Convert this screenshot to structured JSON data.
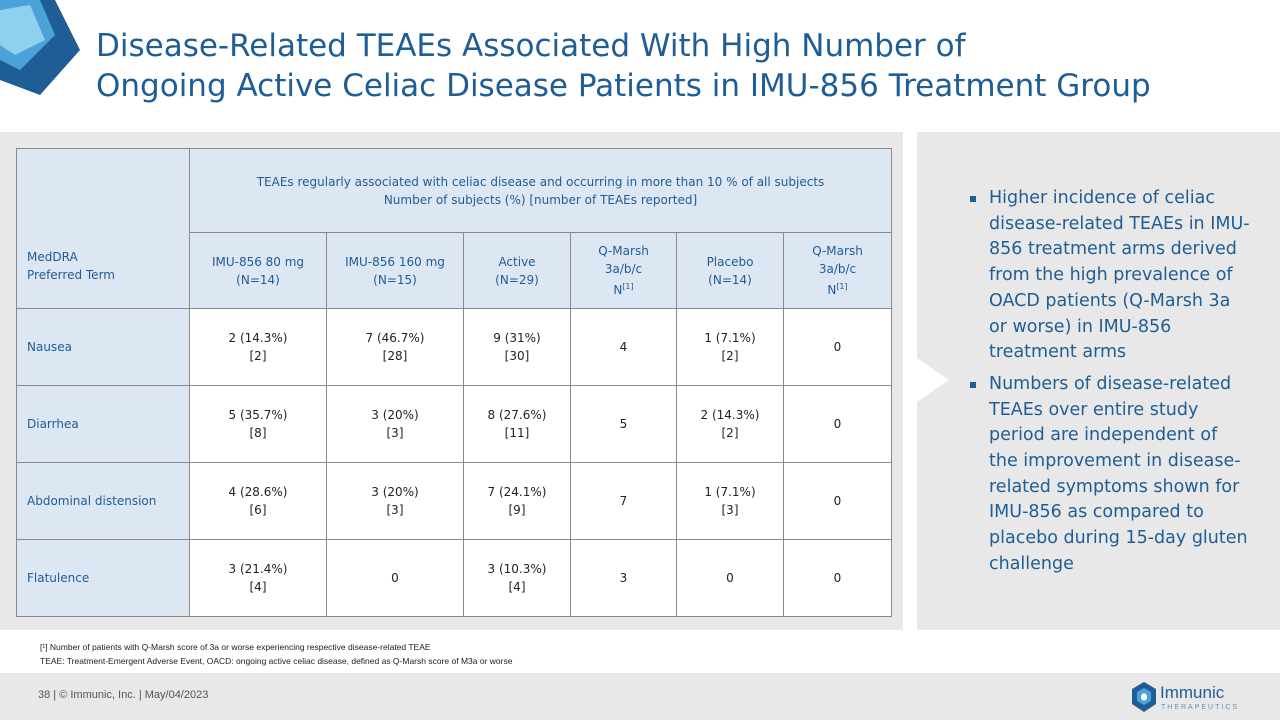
{
  "title": {
    "line1": "Disease-Related TEAEs Associated With High Number of",
    "line2": "Ongoing Active Celiac Disease Patients in IMU-856 Treatment Group"
  },
  "table": {
    "stub_line1": "MedDRA",
    "stub_line2": "Preferred Term",
    "group_line1": "TEAEs regularly associated with celiac disease and occurring in more than 10 % of all subjects",
    "group_line2": "Number of subjects (%) [number of TEAEs reported]",
    "columns": [
      {
        "line1": "IMU-856 80 mg",
        "line2": "(N=14)"
      },
      {
        "line1": "IMU-856 160 mg",
        "line2": "(N=15)"
      },
      {
        "line1": "Active",
        "line2": "(N=29)"
      },
      {
        "line1": "Q-Marsh",
        "line2": "3a/b/c",
        "line3": "N",
        "sup": "[1]"
      },
      {
        "line1": "Placebo",
        "line2": "(N=14)"
      },
      {
        "line1": "Q-Marsh",
        "line2": "3a/b/c",
        "line3": "N",
        "sup": "[1]"
      }
    ],
    "rows": [
      {
        "term": "Nausea",
        "cells": [
          [
            "2 (14.3%)",
            "[2]"
          ],
          [
            "7 (46.7%)",
            "[28]"
          ],
          [
            "9 (31%)",
            "[30]"
          ],
          [
            "4",
            ""
          ],
          [
            "1 (7.1%)",
            "[2]"
          ],
          [
            "0",
            ""
          ]
        ]
      },
      {
        "term": "Diarrhea",
        "cells": [
          [
            "5 (35.7%)",
            "[8]"
          ],
          [
            "3 (20%)",
            "[3]"
          ],
          [
            "8 (27.6%)",
            "[11]"
          ],
          [
            "5",
            ""
          ],
          [
            "2 (14.3%)",
            "[2]"
          ],
          [
            "0",
            ""
          ]
        ]
      },
      {
        "term": "Abdominal distension",
        "cells": [
          [
            "4 (28.6%)",
            "[6]"
          ],
          [
            "3 (20%)",
            "[3]"
          ],
          [
            "7 (24.1%)",
            "[9]"
          ],
          [
            "7",
            ""
          ],
          [
            "1 (7.1%)",
            "[3]"
          ],
          [
            "0",
            ""
          ]
        ]
      },
      {
        "term": "Flatulence",
        "cells": [
          [
            "3 (21.4%)",
            "[4]"
          ],
          [
            "0",
            ""
          ],
          [
            "3 (10.3%)",
            "[4]"
          ],
          [
            "3",
            ""
          ],
          [
            "0",
            ""
          ],
          [
            "0",
            ""
          ]
        ]
      }
    ]
  },
  "bullets": [
    "Higher incidence of celiac disease-related TEAEs in IMU-856 treatment arms derived from the high prevalence of OACD patients (Q-Marsh 3a or worse) in IMU-856 treatment arms",
    "Numbers of disease-related TEAEs over entire study period are independent of the improvement in disease-related symptoms shown for IMU-856 as compared to placebo during 15-day gluten challenge"
  ],
  "footnotes": {
    "line1": "[¹] Number of patients with Q-Marsh score of 3a or worse experiencing respective disease-related TEAE",
    "line2": "TEAE: Treatment-Emergent Adverse Event, OACD: ongoing active celiac disease, defined as Q-Marsh score of M3a or worse"
  },
  "footer": {
    "text": "38  |  © Immunic, Inc.  | May/04/2023",
    "logo_name": "Immunic",
    "logo_sub": "THERAPEUTICS"
  },
  "colors": {
    "brand_blue": "#1f5d96",
    "header_fill": "#dde6f3",
    "panel_gray": "#e8e8e8"
  }
}
